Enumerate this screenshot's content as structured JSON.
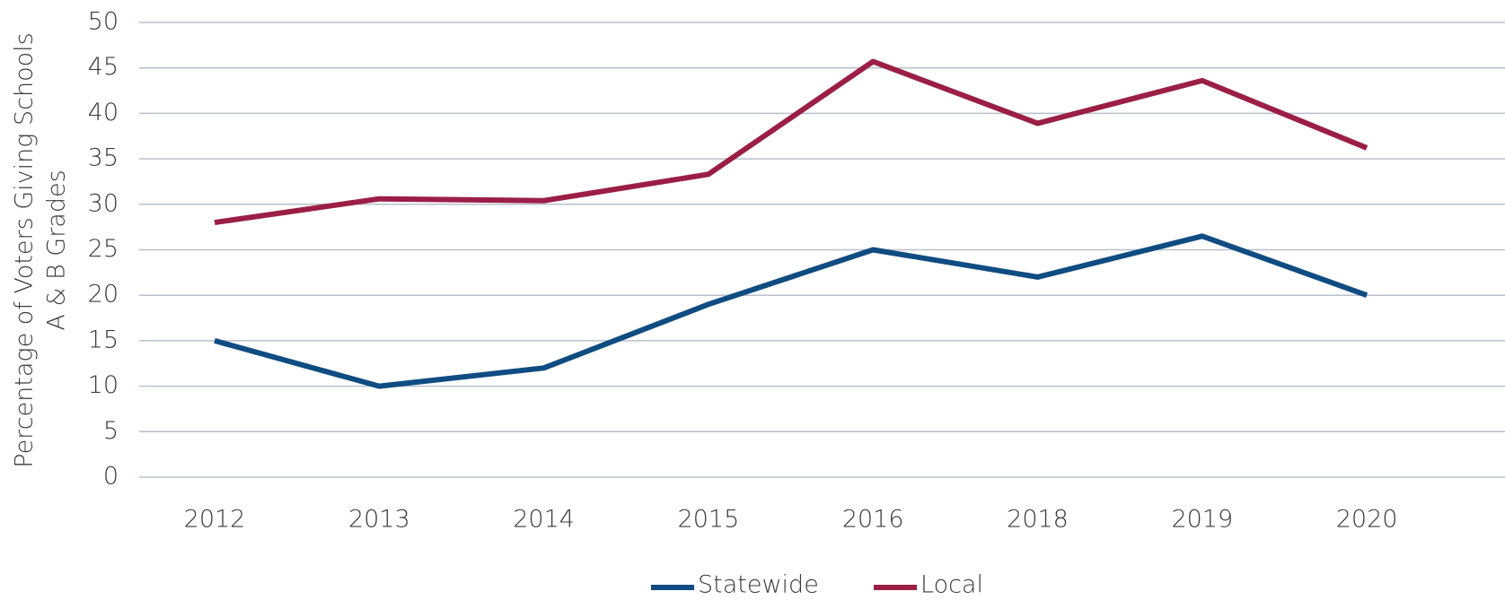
{
  "chart_data": {
    "type": "line",
    "y_label": [
      "Percentage of Voters Giving Schools",
      "A & B Grades"
    ],
    "categories": [
      "2012",
      "2013",
      "2014",
      "2015",
      "2016",
      "2018",
      "2019",
      "2020"
    ],
    "series": [
      {
        "name": "Statewide",
        "color": "#0f4c81",
        "values": [
          15,
          10,
          12,
          19,
          25,
          22,
          26.5,
          20
        ]
      },
      {
        "name": "Local",
        "color": "#9b1f45",
        "values": [
          28,
          30.6,
          30.4,
          33.3,
          45.7,
          38.9,
          43.6,
          36.2
        ]
      }
    ],
    "ylim": [
      0,
      50
    ],
    "yticks": [
      0,
      5,
      10,
      15,
      20,
      25,
      30,
      35,
      40,
      45,
      50
    ],
    "grid": true,
    "legend": "bottom"
  }
}
